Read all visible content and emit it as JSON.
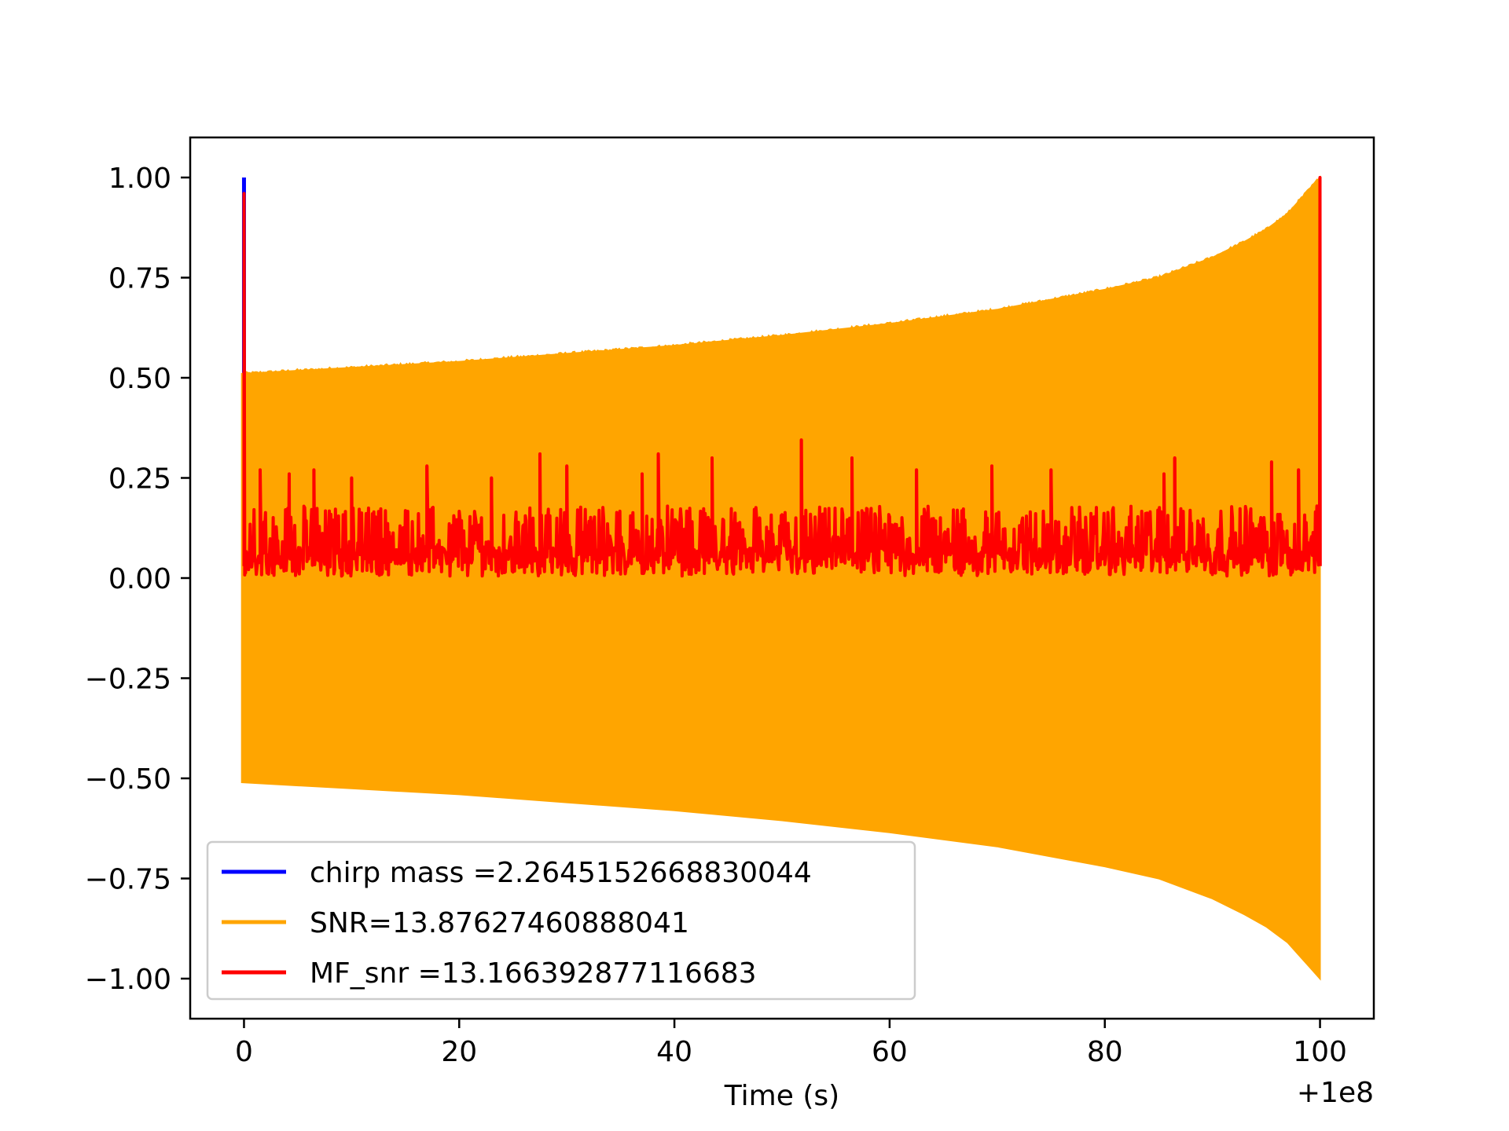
{
  "chart_data": {
    "type": "line",
    "title": "",
    "xlabel": "Time (s)",
    "ylabel": "",
    "x_offset_label": "+1e8",
    "xlim": [
      -5,
      105
    ],
    "ylim": [
      -1.1,
      1.1
    ],
    "x_ticks": [
      0,
      20,
      40,
      60,
      80,
      100
    ],
    "x_tick_labels": [
      "0",
      "20",
      "40",
      "60",
      "80",
      "100"
    ],
    "y_ticks": [
      1.0,
      0.75,
      0.5,
      0.25,
      0.0,
      -0.25,
      -0.5,
      -0.75,
      -1.0
    ],
    "y_tick_labels": [
      "1.00",
      "0.75",
      "0.50",
      "0.25",
      "0.00",
      "−0.25",
      "−0.50",
      "−0.75",
      "−1.00"
    ],
    "grid": false,
    "legend_position": "lower-left",
    "series": [
      {
        "name": "chirp mass =2.2645152668830044",
        "color": "#0000ff",
        "style": "spike",
        "x": [
          0.0,
          0.0
        ],
        "y": [
          0.0,
          1.0
        ]
      },
      {
        "name": "SNR=13.87627460888041",
        "color": "#ffa500",
        "style": "oscillation-envelope",
        "x": [
          -0.2,
          10,
          20,
          30,
          40,
          50,
          60,
          70,
          80,
          85,
          90,
          93,
          95,
          97,
          98,
          99,
          100
        ],
        "upper": [
          0.51,
          0.525,
          0.54,
          0.56,
          0.58,
          0.605,
          0.635,
          0.67,
          0.72,
          0.75,
          0.8,
          0.84,
          0.87,
          0.91,
          0.94,
          0.97,
          1.0
        ],
        "lower": [
          -0.51,
          -0.525,
          -0.54,
          -0.56,
          -0.58,
          -0.605,
          -0.635,
          -0.67,
          -0.72,
          -0.75,
          -0.8,
          -0.84,
          -0.87,
          -0.91,
          -0.94,
          -0.97,
          -1.0
        ]
      },
      {
        "name": "MF_snr =13.166392877116683",
        "color": "#ff0000",
        "style": "noise",
        "x_range": [
          0.0,
          100.0
        ],
        "baseline_range": [
          0.0,
          0.18
        ],
        "start_peak": 0.96,
        "end_peak": 1.0,
        "spikes": [
          {
            "x": 1.5,
            "y": 0.27
          },
          {
            "x": 4.2,
            "y": 0.26
          },
          {
            "x": 6.5,
            "y": 0.27
          },
          {
            "x": 10.0,
            "y": 0.25
          },
          {
            "x": 17.0,
            "y": 0.28
          },
          {
            "x": 23.0,
            "y": 0.25
          },
          {
            "x": 27.5,
            "y": 0.31
          },
          {
            "x": 30.0,
            "y": 0.28
          },
          {
            "x": 37.0,
            "y": 0.26
          },
          {
            "x": 38.5,
            "y": 0.31
          },
          {
            "x": 43.5,
            "y": 0.3
          },
          {
            "x": 51.8,
            "y": 0.345
          },
          {
            "x": 56.5,
            "y": 0.3
          },
          {
            "x": 62.5,
            "y": 0.27
          },
          {
            "x": 69.5,
            "y": 0.28
          },
          {
            "x": 75.0,
            "y": 0.27
          },
          {
            "x": 85.5,
            "y": 0.26
          },
          {
            "x": 86.5,
            "y": 0.3
          },
          {
            "x": 95.5,
            "y": 0.29
          },
          {
            "x": 98.0,
            "y": 0.27
          }
        ]
      }
    ]
  }
}
